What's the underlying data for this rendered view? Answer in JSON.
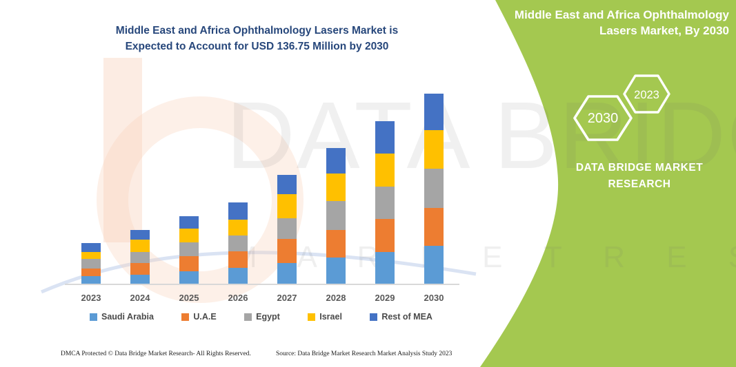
{
  "chart": {
    "title_lines": [
      "Middle East and Africa Ophthalmology Lasers Market is",
      "Expected to Account for USD 136.75 Million by 2030"
    ],
    "title_color": "#27477B"
  },
  "chart_data": {
    "type": "stacked-bar",
    "unit": "USD Million",
    "title": "Middle East and Africa Ophthalmology Lasers Market is Expected to Account for USD 136.75 Million by 2030",
    "categories": [
      "2023",
      "2024",
      "2025",
      "2026",
      "2027",
      "2028",
      "2029",
      "2030"
    ],
    "series": [
      {
        "name": "Saudi Arabia",
        "color": "#5B9BD5",
        "values": [
          5.7,
          6.9,
          9.4,
          12.0,
          15.1,
          19.2,
          23.3,
          27.5
        ]
      },
      {
        "name": "U.A.E",
        "color": "#ED7D31",
        "values": [
          5.8,
          8.2,
          10.7,
          11.8,
          17.3,
          19.7,
          23.4,
          27.4
        ]
      },
      {
        "name": "Egypt",
        "color": "#A5A5A5",
        "values": [
          6.6,
          8.2,
          9.9,
          11.5,
          14.8,
          20.6,
          23.5,
          28.0
        ]
      },
      {
        "name": "Israel",
        "color": "#FFC000",
        "values": [
          5.3,
          9.0,
          9.9,
          11.2,
          17.3,
          19.7,
          23.5,
          27.6
        ]
      },
      {
        "name": "Rest of MEA",
        "color": "#4472C4",
        "values": [
          6.3,
          6.6,
          9.0,
          12.2,
          14.0,
          18.5,
          23.3,
          26.3
        ]
      }
    ],
    "totals_by_year": [
      29.7,
      38.9,
      48.9,
      58.7,
      78.5,
      97.7,
      117.0,
      136.8
    ],
    "highlight_total_2030": 136.75,
    "legend_position": "bottom",
    "y_axis_visible": false,
    "grid": false
  },
  "side_panel": {
    "bg_color": "#A4C850",
    "title_lines": [
      "Middle East and Africa Ophthalmology",
      "Lasers Market, By 2030"
    ],
    "hexagon_labels": [
      "2030",
      "2023"
    ],
    "brand_name": "DATA BRIDGE MARKET RESEARCH"
  },
  "watermark": {
    "line1": "DATA BRIDGE",
    "line2": "M A R K E T   R E S E A R C H"
  },
  "footer": {
    "dmca": "DMCA Protected © Data Bridge Market Research-  All Rights Reserved.",
    "source": "Source: Data Bridge Market Research  Market Analysis Study 2023"
  }
}
